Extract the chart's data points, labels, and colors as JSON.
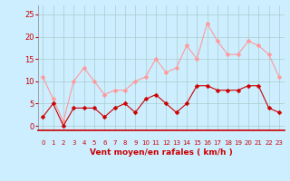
{
  "x": [
    0,
    1,
    2,
    3,
    4,
    5,
    6,
    7,
    8,
    9,
    10,
    11,
    12,
    13,
    14,
    15,
    16,
    17,
    18,
    19,
    20,
    21,
    22,
    23
  ],
  "y_moyen": [
    2,
    5,
    0,
    4,
    4,
    4,
    2,
    4,
    5,
    3,
    6,
    7,
    5,
    3,
    5,
    9,
    9,
    8,
    8,
    8,
    9,
    9,
    4,
    3
  ],
  "y_rafales": [
    11,
    6,
    1,
    10,
    13,
    10,
    7,
    8,
    8,
    10,
    11,
    15,
    12,
    13,
    18,
    15,
    23,
    19,
    16,
    16,
    19,
    18,
    16,
    11
  ],
  "color_moyen": "#cc0000",
  "color_rafales": "#ff9999",
  "background_color": "#cceeff",
  "grid_color": "#aacccc",
  "xlabel": "Vent moyen/en rafales ( km/h )",
  "xlabel_color": "#cc0000",
  "ylim": [
    -1,
    27
  ],
  "yticks": [
    0,
    5,
    10,
    15,
    20,
    25
  ],
  "xlim": [
    -0.5,
    23.5
  ],
  "arrow_symbols": [
    "↘",
    "↓",
    "↘",
    "↘",
    "↘",
    "↘",
    "↘",
    "↘",
    "↙",
    "↙",
    "↙",
    "↘",
    "↓",
    "↓",
    "↙",
    "↓",
    "↓",
    "↙",
    "↙",
    "↙",
    "↘",
    "↘",
    "↘",
    "↘"
  ]
}
